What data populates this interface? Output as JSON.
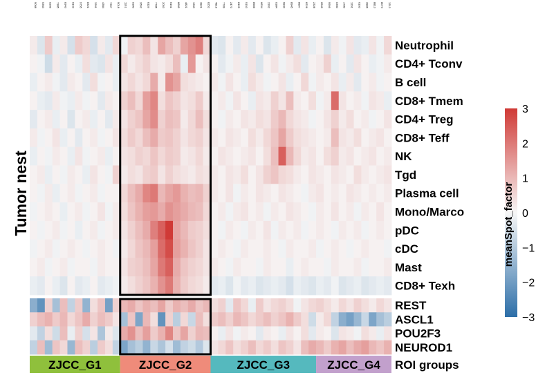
{
  "chart_data": {
    "type": "heatmap",
    "side_title": "Tumor nest",
    "legend": {
      "title": "meanSpot_factor",
      "ticks": [
        3,
        2,
        1,
        0,
        -1,
        -2,
        -3
      ],
      "range": [
        -3,
        3
      ],
      "colors": {
        "low": "#2c6ea8",
        "mid": "#f7f7f7",
        "high": "#d03a36"
      }
    },
    "column_labels": [
      "9068",
      "9363",
      "9265",
      "7385",
      "8343",
      "6143",
      "9755",
      "8321",
      "3261",
      "4384",
      "7357",
      "9018",
      "1191",
      "9350",
      "2692",
      "8118",
      "7785",
      "2053",
      "6191",
      "8665",
      "4821",
      "1363",
      "3821",
      "8252",
      "4815",
      "7789",
      "2470",
      "8125",
      "9193",
      "8986",
      "6634",
      "2302",
      "0384",
      "9840",
      "8945",
      "8697",
      "8226",
      "2328",
      "6549",
      "9999",
      "0360",
      "1780",
      "1291",
      "6163",
      "2886",
      "8813",
      "8073",
      "1213"
    ],
    "cell_immune": {
      "rows": [
        "Neutrophil",
        "CD4+ Tconv",
        "B cell",
        "CD8+ Tmem",
        "CD4+ Treg",
        "CD8+ Teff",
        "NK",
        "Tgd",
        "Plasma cell",
        "Mono/Marco",
        "pDC",
        "cDC",
        "Mast",
        "CD8+ Texh"
      ],
      "values": [
        [
          0.2,
          -0.4,
          0.7,
          -0.2,
          0.2,
          -0.5,
          0.7,
          0.5,
          -0.5,
          0.2,
          -0.3,
          0.5,
          -0.1,
          0.6,
          0.5,
          0.9,
          0.3,
          1.3,
          0.9,
          0.6,
          1.3,
          1.6,
          1.9,
          0.5,
          -0.3,
          -0.4,
          0.1,
          -0.3,
          0.2,
          -0.3,
          0.1,
          -0.4,
          -0.2,
          0.1,
          0.6,
          -0.3,
          0.3,
          -0.2,
          0.1,
          -0.4,
          0.2,
          -0.1,
          0.3,
          -0.3,
          -0.2,
          0.3,
          -0.1,
          0.5
        ],
        [
          0.1,
          -0.1,
          -0.6,
          0.2,
          -0.3,
          0.1,
          -0.2,
          0.4,
          -0.3,
          -0.4,
          0.3,
          -0.2,
          0.5,
          0.2,
          0.4,
          0.6,
          0.3,
          0.2,
          0.4,
          0.9,
          -0.2,
          1.5,
          0.1,
          0.3,
          0.1,
          -0.3,
          -0.1,
          0.2,
          -0.2,
          0.3,
          -0.4,
          0.1,
          0.3,
          -0.1,
          0.2,
          0.4,
          -0.3,
          0.1,
          0.2,
          0.6,
          -0.2,
          0.1,
          -0.3,
          0.3,
          0.1,
          -0.2,
          -0.1,
          0.2
        ],
        [
          -0.2,
          0.1,
          0.2,
          -0.1,
          -0.3,
          0.2,
          0.1,
          -0.3,
          0.4,
          -0.1,
          0.1,
          -0.2,
          0.3,
          0.5,
          0.3,
          0.5,
          1.2,
          0.2,
          1.6,
          1.3,
          0.4,
          0.3,
          0.2,
          0.1,
          0.2,
          -0.1,
          0.3,
          0.1,
          -0.2,
          0.4,
          0.2,
          -0.1,
          0.1,
          0.3,
          -0.2,
          0.1,
          0.5,
          -0.1,
          0.2,
          0.1,
          0.3,
          -0.2,
          0.2,
          -0.3,
          0.1,
          0.2,
          -0.1,
          0.1
        ],
        [
          0.1,
          -0.2,
          -0.3,
          0.2,
          -0.1,
          -0.2,
          0.2,
          -0.1,
          0.1,
          -0.3,
          0.2,
          0.1,
          0.6,
          0.9,
          0.5,
          1.4,
          1.8,
          0.4,
          0.8,
          0.6,
          0.3,
          0.4,
          0.7,
          0.2,
          0.1,
          0.2,
          -0.1,
          0.3,
          0.1,
          -0.2,
          0.3,
          0.2,
          0.6,
          0.3,
          0.9,
          0.2,
          0.1,
          0.4,
          -0.1,
          0.2,
          2.2,
          0.3,
          0.1,
          0.2,
          -0.1,
          0.3,
          0.2,
          -0.2
        ],
        [
          -0.3,
          0.1,
          0.2,
          -0.2,
          0.1,
          -0.4,
          0.1,
          0.2,
          -0.2,
          0.1,
          -0.3,
          0.2,
          0.3,
          0.6,
          0.8,
          1.3,
          1.7,
          0.6,
          0.9,
          0.8,
          0.2,
          0.5,
          0.9,
          0.4,
          0.1,
          -0.1,
          0.2,
          0.1,
          0.3,
          0.2,
          0.4,
          0.3,
          0.7,
          1.0,
          0.5,
          0.3,
          0.2,
          -0.1,
          0.1,
          0.3,
          0.6,
          0.2,
          0.4,
          0.1,
          0.2,
          -0.1,
          0.1,
          0.3
        ],
        [
          0.2,
          -0.1,
          0.1,
          0.3,
          -0.2,
          0.1,
          -0.3,
          0.1,
          0.2,
          -0.1,
          0.1,
          0.3,
          0.4,
          0.7,
          0.5,
          0.9,
          1.2,
          0.7,
          0.8,
          0.6,
          0.3,
          0.5,
          0.6,
          0.3,
          0.2,
          0.1,
          0.3,
          0.2,
          0.1,
          0.4,
          0.2,
          0.5,
          0.8,
          1.3,
          0.7,
          0.4,
          0.3,
          0.2,
          0.1,
          0.2,
          0.9,
          0.3,
          0.2,
          0.4,
          0.1,
          0.2,
          0.3,
          0.1
        ],
        [
          -0.2,
          0.1,
          -0.1,
          0.2,
          0.1,
          -0.2,
          0.3,
          -0.1,
          0.1,
          0.2,
          -0.2,
          0.1,
          0.3,
          0.4,
          0.6,
          0.5,
          0.8,
          0.5,
          0.7,
          0.6,
          0.2,
          0.3,
          0.5,
          0.2,
          0.1,
          0.3,
          0.2,
          0.1,
          0.2,
          0.3,
          0.1,
          0.4,
          0.9,
          2.4,
          1.0,
          0.5,
          0.2,
          0.3,
          0.1,
          0.4,
          0.6,
          0.2,
          0.3,
          0.1,
          0.2,
          0.3,
          0.1,
          0.2
        ],
        [
          0.1,
          0.2,
          -0.2,
          0.1,
          -0.1,
          0.2,
          0.1,
          -0.2,
          0.3,
          0.1,
          -0.1,
          0.6,
          0.2,
          0.4,
          0.3,
          0.6,
          0.7,
          0.3,
          0.6,
          0.4,
          0.3,
          0.2,
          0.4,
          0.3,
          0.2,
          0.1,
          0.3,
          0.2,
          0.4,
          0.1,
          0.3,
          0.6,
          0.8,
          0.5,
          0.4,
          0.2,
          0.1,
          0.3,
          0.2,
          0.1,
          0.3,
          0.2,
          0.1,
          0.4,
          0.2,
          0.1,
          0.2,
          0.3
        ],
        [
          0.1,
          -0.1,
          0.2,
          -0.2,
          0.1,
          0.2,
          -0.1,
          0.1,
          0.2,
          -0.1,
          0.1,
          0.1,
          0.5,
          0.9,
          1.2,
          1.8,
          2.0,
          1.0,
          1.3,
          1.5,
          1.1,
          0.9,
          1.0,
          0.6,
          0.2,
          0.1,
          0.3,
          -0.1,
          0.2,
          0.1,
          0.3,
          0.2,
          0.1,
          0.3,
          0.2,
          0.1,
          -0.1,
          0.2,
          0.3,
          0.1,
          0.2,
          0.1,
          0.3,
          0.2,
          0.1,
          0.2,
          0.1,
          0.2
        ],
        [
          -0.1,
          0.1,
          0.2,
          0.1,
          -0.2,
          0.1,
          0.2,
          -0.1,
          0.1,
          0.3,
          -0.1,
          0.2,
          0.4,
          0.8,
          1.1,
          1.4,
          1.5,
          1.2,
          1.6,
          1.4,
          1.2,
          1.0,
          0.9,
          0.5,
          0.1,
          0.2,
          -0.1,
          0.2,
          0.3,
          0.1,
          0.2,
          -0.1,
          0.2,
          0.1,
          0.3,
          0.2,
          0.1,
          -0.1,
          0.2,
          0.1,
          0.3,
          0.1,
          0.2,
          -0.1,
          0.2,
          0.1,
          0.3,
          0.1
        ],
        [
          0.1,
          -0.1,
          0.1,
          0.2,
          -0.1,
          0.1,
          -0.2,
          0.1,
          0.2,
          -0.1,
          0.1,
          0.2,
          0.3,
          0.6,
          0.9,
          1.2,
          1.9,
          2.4,
          3.0,
          1.3,
          1.0,
          0.7,
          0.6,
          0.4,
          0.1,
          -0.1,
          0.2,
          0.1,
          -0.1,
          0.2,
          0.1,
          0.3,
          -0.1,
          0.2,
          0.1,
          0.2,
          -0.1,
          0.1,
          0.2,
          0.1,
          -0.1,
          0.2,
          0.1,
          0.2,
          -0.1,
          0.1,
          0.2,
          0.1
        ],
        [
          -0.1,
          0.1,
          0.2,
          -0.1,
          0.1,
          0.2,
          0.1,
          -0.1,
          0.1,
          0.2,
          0.1,
          -0.1,
          0.2,
          0.5,
          0.8,
          1.0,
          1.4,
          2.2,
          2.7,
          1.4,
          1.1,
          0.8,
          0.6,
          0.3,
          0.1,
          0.2,
          0.1,
          -0.1,
          0.2,
          0.1,
          0.1,
          0.2,
          0.1,
          -0.1,
          0.2,
          0.1,
          0.1,
          0.2,
          -0.1,
          0.1,
          0.2,
          0.1,
          -0.1,
          0.1,
          0.2,
          0.1,
          0.1,
          -0.1
        ],
        [
          0.1,
          0.2,
          -0.1,
          0.1,
          0.2,
          -0.1,
          0.1,
          0.1,
          -0.1,
          0.2,
          0.1,
          0.1,
          0.3,
          0.6,
          0.7,
          0.9,
          1.3,
          2.0,
          2.4,
          1.2,
          0.8,
          0.6,
          0.5,
          0.3,
          0.2,
          0.1,
          -0.1,
          0.2,
          0.1,
          0.1,
          -0.1,
          0.2,
          0.1,
          0.1,
          -0.2,
          0.1,
          0.2,
          0.1,
          0.1,
          -0.1,
          0.2,
          0.1,
          0.1,
          0.2,
          -0.1,
          0.1,
          0.1,
          0.2
        ],
        [
          -0.2,
          -0.3,
          0.1,
          -0.2,
          -0.4,
          0.1,
          -0.3,
          -0.2,
          0.1,
          -0.3,
          -0.2,
          -0.1,
          0.2,
          0.4,
          0.6,
          0.8,
          1.1,
          1.6,
          2.0,
          1.1,
          0.7,
          0.5,
          0.4,
          0.2,
          -0.3,
          -0.2,
          -0.4,
          -0.1,
          -0.3,
          -0.2,
          -0.4,
          -0.3,
          -0.2,
          -0.3,
          -0.5,
          -0.2,
          -0.3,
          -0.4,
          -0.2,
          -0.3,
          -0.1,
          -0.4,
          -0.3,
          -0.2,
          -0.4,
          -0.3,
          -0.2,
          -0.3
        ]
      ]
    },
    "tf_expression": {
      "rows": [
        "REST",
        "ASCL1",
        "POU2F3",
        "NEUROD1"
      ],
      "values": [
        [
          -1.6,
          -2.2,
          0.6,
          -1.2,
          0.9,
          -0.8,
          0.7,
          -1.5,
          0.4,
          0.8,
          -1.9,
          0.6,
          1.0,
          1.2,
          0.8,
          1.1,
          0.9,
          1.3,
          0.7,
          1.1,
          0.9,
          1.2,
          0.8,
          1.0,
          0.4,
          0.6,
          -0.3,
          0.8,
          0.5,
          -0.2,
          0.7,
          0.3,
          0.5,
          0.6,
          0.4,
          -0.1,
          0.3,
          0.5,
          0.6,
          0.4,
          0.2,
          0.5,
          0.3,
          0.6,
          0.4,
          0.2,
          0.5,
          0.3
        ],
        [
          0.6,
          0.9,
          1.1,
          0.7,
          1.0,
          0.5,
          0.8,
          1.2,
          0.6,
          0.9,
          0.7,
          0.3,
          -1.2,
          0.8,
          -1.8,
          1.0,
          0.4,
          -2.2,
          0.6,
          -0.9,
          0.5,
          -0.7,
          0.9,
          0.4,
          0.7,
          0.9,
          0.6,
          1.0,
          0.8,
          0.5,
          0.7,
          0.9,
          0.6,
          0.8,
          1.1,
          0.7,
          0.4,
          -0.6,
          0.2,
          0.5,
          -0.8,
          -1.6,
          -1.9,
          -1.4,
          -0.7,
          -1.8,
          -1.2,
          -0.9
        ],
        [
          -0.3,
          -0.8,
          0.4,
          -0.6,
          0.9,
          -0.2,
          0.6,
          -0.5,
          0.3,
          -1.1,
          0.2,
          -0.4,
          1.2,
          1.6,
          0.9,
          1.4,
          0.7,
          1.1,
          1.8,
          0.8,
          1.3,
          0.6,
          1.0,
          0.9,
          0.1,
          -0.2,
          0.3,
          -0.1,
          0.2,
          0.1,
          -0.3,
          0.2,
          0.1,
          -0.2,
          0.3,
          0.1,
          0.4,
          -0.3,
          0.2,
          0.1,
          -0.4,
          0.3,
          0.2,
          -0.1,
          0.4,
          0.2,
          -0.2,
          0.3
        ],
        [
          -0.8,
          0.9,
          -1.3,
          0.8,
          0.5,
          -1.4,
          0.9,
          0.6,
          -0.9,
          0.7,
          0.4,
          -0.8,
          -1.8,
          -1.2,
          -0.9,
          -1.5,
          -0.7,
          -1.1,
          -0.5,
          -1.3,
          -0.8,
          -0.6,
          -1.0,
          -0.4,
          0.3,
          0.5,
          0.8,
          0.4,
          0.6,
          0.9,
          0.5,
          0.7,
          0.4,
          0.8,
          0.6,
          0.3,
          0.9,
          1.2,
          1.0,
          0.7,
          1.1,
          1.3,
          0.9,
          1.2,
          1.4,
          1.0,
          0.8,
          1.1
        ]
      ]
    },
    "roi_groups": {
      "label": "ROI groups",
      "groups": [
        {
          "name": "ZJCC_G1",
          "start": 0,
          "end": 11,
          "color": "#8fc03c"
        },
        {
          "name": "ZJCC_G2",
          "start": 12,
          "end": 23,
          "color": "#ef8b7a"
        },
        {
          "name": "ZJCC_G3",
          "start": 24,
          "end": 37,
          "color": "#55b9be"
        },
        {
          "name": "ZJCC_G4",
          "start": 38,
          "end": 47,
          "color": "#c2a0cc"
        }
      ]
    },
    "highlight_group": "ZJCC_G2"
  }
}
